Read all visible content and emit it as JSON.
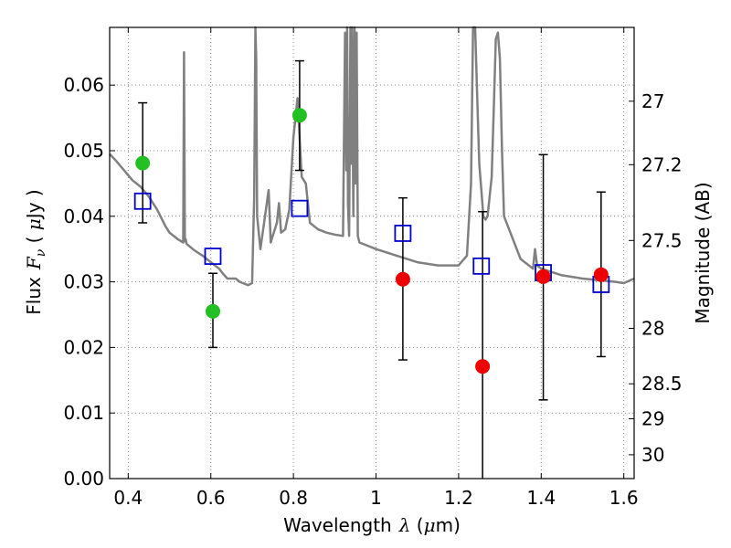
{
  "chart_data": {
    "type": "scatter",
    "xlabel_parts": {
      "pre": "Wavelength",
      "symbol": "λ",
      "open": " (",
      "mu": "μ",
      "unit": "m)"
    },
    "ylabel_parts": {
      "pre": "Flux",
      "symbol": "F",
      "sub": "ν",
      "open": " ( ",
      "mu": "μ",
      "unit": "Jy )"
    },
    "y2label": "Magnitude (AB)",
    "xlim": [
      0.355,
      1.625
    ],
    "ylim": [
      0.0,
      0.0688
    ],
    "grid": true,
    "x_ticks": [
      0.4,
      0.6,
      0.8,
      1.0,
      1.2,
      1.4,
      1.6
    ],
    "x_tick_labels": [
      "0.4",
      "0.6",
      "0.8",
      "1",
      "1.2",
      "1.4",
      "1.6"
    ],
    "y_ticks": [
      0.0,
      0.01,
      0.02,
      0.03,
      0.04,
      0.05,
      0.06
    ],
    "y_tick_labels": [
      "0.00",
      "0.01",
      "0.02",
      "0.03",
      "0.04",
      "0.05",
      "0.06"
    ],
    "y2_ticks": [
      27,
      27.2,
      27.5,
      28,
      28.5,
      29,
      30
    ],
    "y2_tick_labels": [
      "27",
      "27.2",
      "27.5",
      "28",
      "28.5",
      "29",
      "30"
    ],
    "colors": {
      "spectrum": "#808080",
      "model": "#0000cc",
      "green": "#22c022",
      "red": "#ee0000",
      "grid": "#888888"
    },
    "series": [
      {
        "name": "",
        "kind": "spectrum-line",
        "x": [
          0.355,
          0.37,
          0.39,
          0.41,
          0.43,
          0.45,
          0.47,
          0.49,
          0.5,
          0.52,
          0.533,
          0.535,
          0.537,
          0.539,
          0.541,
          0.56,
          0.58,
          0.6,
          0.62,
          0.63,
          0.64,
          0.66,
          0.67,
          0.69,
          0.7,
          0.705,
          0.708,
          0.71,
          0.712,
          0.72,
          0.73,
          0.74,
          0.745,
          0.75,
          0.76,
          0.765,
          0.77,
          0.78,
          0.79,
          0.8,
          0.81,
          0.82,
          0.83,
          0.84,
          0.86,
          0.88,
          0.9,
          0.92,
          0.925,
          0.928,
          0.93,
          0.932,
          0.935,
          0.938,
          0.94,
          0.942,
          0.945,
          0.948,
          0.95,
          0.953,
          0.956,
          0.96,
          0.98,
          1.0,
          1.05,
          1.1,
          1.15,
          1.2,
          1.22,
          1.23,
          1.235,
          1.24,
          1.245,
          1.25,
          1.255,
          1.26,
          1.265,
          1.27,
          1.28,
          1.285,
          1.29,
          1.295,
          1.3,
          1.305,
          1.31,
          1.35,
          1.38,
          1.385,
          1.39,
          1.4,
          1.45,
          1.5,
          1.55,
          1.58,
          1.6,
          1.625
        ],
        "y": [
          0.0495,
          0.0485,
          0.047,
          0.0455,
          0.0445,
          0.043,
          0.041,
          0.0385,
          0.0375,
          0.0365,
          0.036,
          0.065,
          0.0362,
          0.0365,
          0.0358,
          0.0348,
          0.034,
          0.033,
          0.032,
          0.0312,
          0.0305,
          0.0305,
          0.03,
          0.0295,
          0.0298,
          0.043,
          0.072,
          0.064,
          0.04,
          0.035,
          0.0395,
          0.044,
          0.036,
          0.037,
          0.039,
          0.042,
          0.0375,
          0.038,
          0.041,
          0.052,
          0.058,
          0.046,
          0.045,
          0.039,
          0.038,
          0.0375,
          0.0372,
          0.037,
          0.068,
          0.047,
          0.072,
          0.042,
          0.037,
          0.072,
          0.048,
          0.07,
          0.04,
          0.072,
          0.045,
          0.068,
          0.037,
          0.036,
          0.0355,
          0.035,
          0.034,
          0.033,
          0.0325,
          0.0325,
          0.034,
          0.045,
          0.071,
          0.072,
          0.058,
          0.048,
          0.044,
          0.04,
          0.0395,
          0.04,
          0.046,
          0.056,
          0.067,
          0.068,
          0.064,
          0.05,
          0.04,
          0.0335,
          0.032,
          0.035,
          0.0325,
          0.032,
          0.031,
          0.0305,
          0.0302,
          0.03,
          0.0298,
          0.0305
        ]
      },
      {
        "name": "",
        "kind": "open-squares",
        "x": [
          0.435,
          0.605,
          0.815,
          1.065,
          1.255,
          1.405,
          1.545
        ],
        "y": [
          0.0423,
          0.0339,
          0.0412,
          0.0374,
          0.0324,
          0.0314,
          0.0296
        ]
      },
      {
        "name": "",
        "kind": "points-errorbars",
        "color_key": "green",
        "x": [
          0.435,
          0.605,
          0.815
        ],
        "y": [
          0.0481,
          0.0255,
          0.0554
        ],
        "yerr_low": [
          0.039,
          0.02,
          0.047
        ],
        "yerr_high": [
          0.0573,
          0.0313,
          0.0637
        ]
      },
      {
        "name": "",
        "kind": "points-errorbars",
        "color_key": "red",
        "x": [
          1.065,
          1.258,
          1.405,
          1.545
        ],
        "y": [
          0.0304,
          0.0171,
          0.0308,
          0.0311
        ],
        "yerr_low": [
          0.0181,
          0.0,
          0.012,
          0.0186
        ],
        "yerr_high": [
          0.0428,
          0.0407,
          0.0494,
          0.0437
        ]
      }
    ]
  }
}
